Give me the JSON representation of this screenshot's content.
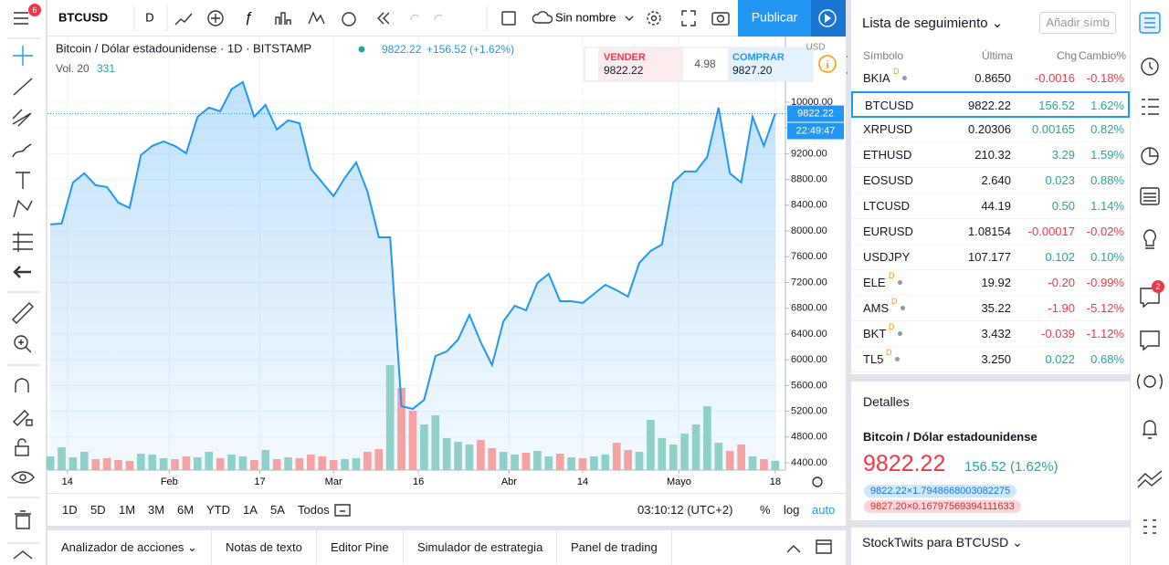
{
  "toolbar": {
    "badge": "6",
    "symbol": "BTCUSD",
    "interval": "D",
    "layout": "Sin nombre",
    "publish": "Publicar"
  },
  "chart_data": {
    "type": "line",
    "title": "Bitcoin / Dólar estadounidense · 1D · BITSTAMP",
    "legend_price": "9822.22",
    "legend_change": "+156.52 (+1.62%)",
    "volume_label": "Vol. 20",
    "volume_value": "331",
    "currency": "USD",
    "price_label": "9822.22",
    "countdown": "22:49:47",
    "color": "#2196f3",
    "x": [
      -3,
      -1,
      1,
      3,
      5,
      7,
      9,
      11,
      13,
      15,
      17,
      19,
      21,
      23,
      25,
      27,
      29,
      31,
      33,
      35,
      37,
      39,
      41,
      43,
      45,
      47,
      49,
      51,
      53,
      55,
      57,
      59,
      61,
      63,
      65,
      67,
      69,
      71,
      73,
      75,
      77,
      79,
      81,
      83,
      85,
      87,
      89,
      91,
      93,
      95,
      97,
      99,
      101,
      103,
      105,
      107,
      109,
      111,
      113,
      115,
      117,
      119,
      121,
      123,
      125
    ],
    "values": [
      8101,
      8115,
      8753,
      8895,
      8711,
      8683,
      8441,
      8356,
      9179,
      9320,
      9391,
      9320,
      9207,
      9774,
      9916,
      9859,
      10200,
      10313,
      9774,
      9959,
      9576,
      9718,
      9675,
      8966,
      8753,
      8541,
      8824,
      9065,
      8611,
      7902,
      7902,
      5279,
      5237,
      5378,
      6059,
      6130,
      6314,
      6697,
      6272,
      5917,
      6598,
      6839,
      6768,
      7193,
      7335,
      6910,
      6910,
      6882,
      7023,
      7165,
      7080,
      6981,
      7505,
      7690,
      7789,
      8753,
      8923,
      8923,
      9150,
      9916,
      8895,
      8753,
      9774,
      9320,
      9822
    ],
    "volume": {
      "axis": "y2",
      "values": [
        30000,
        50000,
        28000,
        40000,
        24000,
        26000,
        22000,
        20000,
        36000,
        34000,
        26000,
        24000,
        30000,
        28000,
        40000,
        26000,
        34000,
        30000,
        22000,
        44000,
        24000,
        28000,
        26000,
        34000,
        30000,
        22000,
        24000,
        26000,
        40000,
        46000,
        230000,
        180000,
        130000,
        100000,
        120000,
        70000,
        62000,
        56000,
        66000,
        48000,
        40000,
        34000,
        38000,
        42000,
        30000,
        36000,
        28000,
        26000,
        30000,
        34000,
        60000,
        44000,
        40000,
        110000,
        70000,
        56000,
        80000,
        100000,
        140000,
        60000,
        42000,
        56000,
        30000,
        24000,
        20331
      ]
    },
    "xlim": [
      -3.5,
      126.8
    ],
    "xticks": [
      {
        "value": 0,
        "label": "14"
      },
      {
        "value": 18,
        "label": "Feb"
      },
      {
        "value": 34,
        "label": "17"
      },
      {
        "value": 47,
        "label": "Mar"
      },
      {
        "value": 62,
        "label": "16"
      },
      {
        "value": 78,
        "label": "Abr"
      },
      {
        "value": 91,
        "label": "14"
      },
      {
        "value": 108,
        "label": "Mayo"
      },
      {
        "value": 125,
        "label": "18"
      }
    ],
    "ylim": [
      4287,
      11020
    ],
    "yticks": [
      {
        "value": 4400,
        "label": "4400.00"
      },
      {
        "value": 4800,
        "label": "4800.00"
      },
      {
        "value": 5200,
        "label": "5200.00"
      },
      {
        "value": 5600,
        "label": "5600.00"
      },
      {
        "value": 6000,
        "label": "6000.00"
      },
      {
        "value": 6400,
        "label": "6400.00"
      },
      {
        "value": 6800,
        "label": "6800.00"
      },
      {
        "value": 7200,
        "label": "7200.00"
      },
      {
        "value": 7600,
        "label": "7600.00"
      },
      {
        "value": 8000,
        "label": "8000.00"
      },
      {
        "value": 8400,
        "label": "8400.00"
      },
      {
        "value": 8800,
        "label": "8800.00"
      },
      {
        "value": 9200,
        "label": "9200.00"
      },
      {
        "value": 9600,
        "label": "9600.00"
      },
      {
        "value": 10000,
        "label": "10000.00"
      }
    ],
    "y2lim": [
      0,
      250000
    ],
    "grid": true
  },
  "trade": {
    "sell": "VENDER",
    "sell_price": "9822.22",
    "spread": "4.98",
    "buy": "COMPRAR",
    "buy_price": "9827.20"
  },
  "range_bar": {
    "buttons": [
      "1D",
      "5D",
      "1M",
      "3M",
      "6M",
      "YTD",
      "1A",
      "5A",
      "Todos"
    ],
    "time": "03:10:12 (UTC+2)",
    "percent": "%",
    "log": "log",
    "auto": "auto"
  },
  "tabs": [
    "Analizador de acciones",
    "Notas de texto",
    "Editor Pine",
    "Simulador de estrategia",
    "Panel de trading"
  ],
  "watchlist": {
    "title": "Lista de seguimiento",
    "add": "Añadir símb",
    "columns": [
      "Símbolo",
      "Última",
      "Chg",
      "Cambio%"
    ],
    "rows": [
      {
        "symbol": "BKIA",
        "badge": "D",
        "last": "0.8650",
        "chg": "-0.0016",
        "pct": "-0.18%"
      },
      {
        "symbol": "BTCUSD",
        "last": "9822.22",
        "chg": "156.52",
        "pct": "1.62%"
      },
      {
        "symbol": "XRPUSD",
        "last": "0.20306",
        "chg": "0.00165",
        "pct": "0.82%"
      },
      {
        "symbol": "ETHUSD",
        "last": "210.32",
        "chg": "3.29",
        "pct": "1.59%"
      },
      {
        "symbol": "EOSUSD",
        "last": "2.640",
        "chg": "0.023",
        "pct": "0.88%"
      },
      {
        "symbol": "LTCUSD",
        "last": "44.19",
        "chg": "0.50",
        "pct": "1.14%"
      },
      {
        "symbol": "EURUSD",
        "last": "1.08154",
        "chg": "-0.00017",
        "pct": "-0.02%"
      },
      {
        "symbol": "USDJPY",
        "last": "107.177",
        "chg": "0.102",
        "pct": "0.10%"
      },
      {
        "symbol": "ELE",
        "badge": "D",
        "last": "19.92",
        "chg": "-0.20",
        "pct": "-0.99%"
      },
      {
        "symbol": "AMS",
        "badge": "D",
        "last": "35.22",
        "chg": "-1.90",
        "pct": "-5.12%"
      },
      {
        "symbol": "BKT",
        "badge": "D",
        "last": "3.432",
        "chg": "-0.039",
        "pct": "-1.12%"
      },
      {
        "symbol": "TL5",
        "badge": "D",
        "last": "3.250",
        "chg": "0.022",
        "pct": "0.68%"
      }
    ]
  },
  "details": {
    "title": "Detalles",
    "name": "Bitcoin / Dólar estadounidense",
    "price": "9822.22",
    "change": "156.52 (1.62%)",
    "bid": "9822.22×1.7948668003082275",
    "ask": "9827.20×0.16797569394111633"
  },
  "stocktwits": "StockTwits para BTCUSD",
  "alerts_badge": "2"
}
